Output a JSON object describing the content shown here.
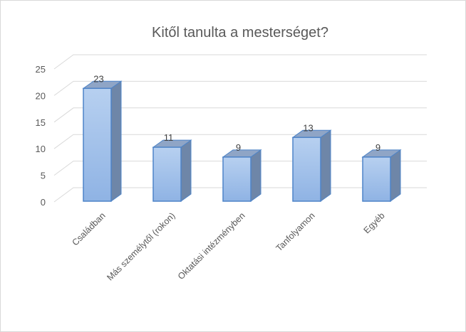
{
  "chart_data": {
    "type": "bar",
    "title": "Kitől tanulta a mesterséget?",
    "categories": [
      "Családban",
      "Más személytől (rokon)",
      "Oktatási intézményben",
      "Tanfolyamon",
      "Egyéb"
    ],
    "values": [
      23,
      11,
      9,
      13,
      9
    ],
    "ylim": [
      0,
      25
    ],
    "yticks": [
      0,
      5,
      10,
      15,
      20,
      25
    ],
    "grid": true,
    "legend": "none",
    "style": "3d-column",
    "colors": {
      "bar_front_top": "#b7d0f0",
      "bar_front_bottom": "#8fb3e4",
      "bar_side": "#6e86a8",
      "bar_top": "#8fa5c6",
      "bar_edge": "#4e84c8",
      "grid": "#d9d9d9",
      "text": "#595959"
    }
  }
}
